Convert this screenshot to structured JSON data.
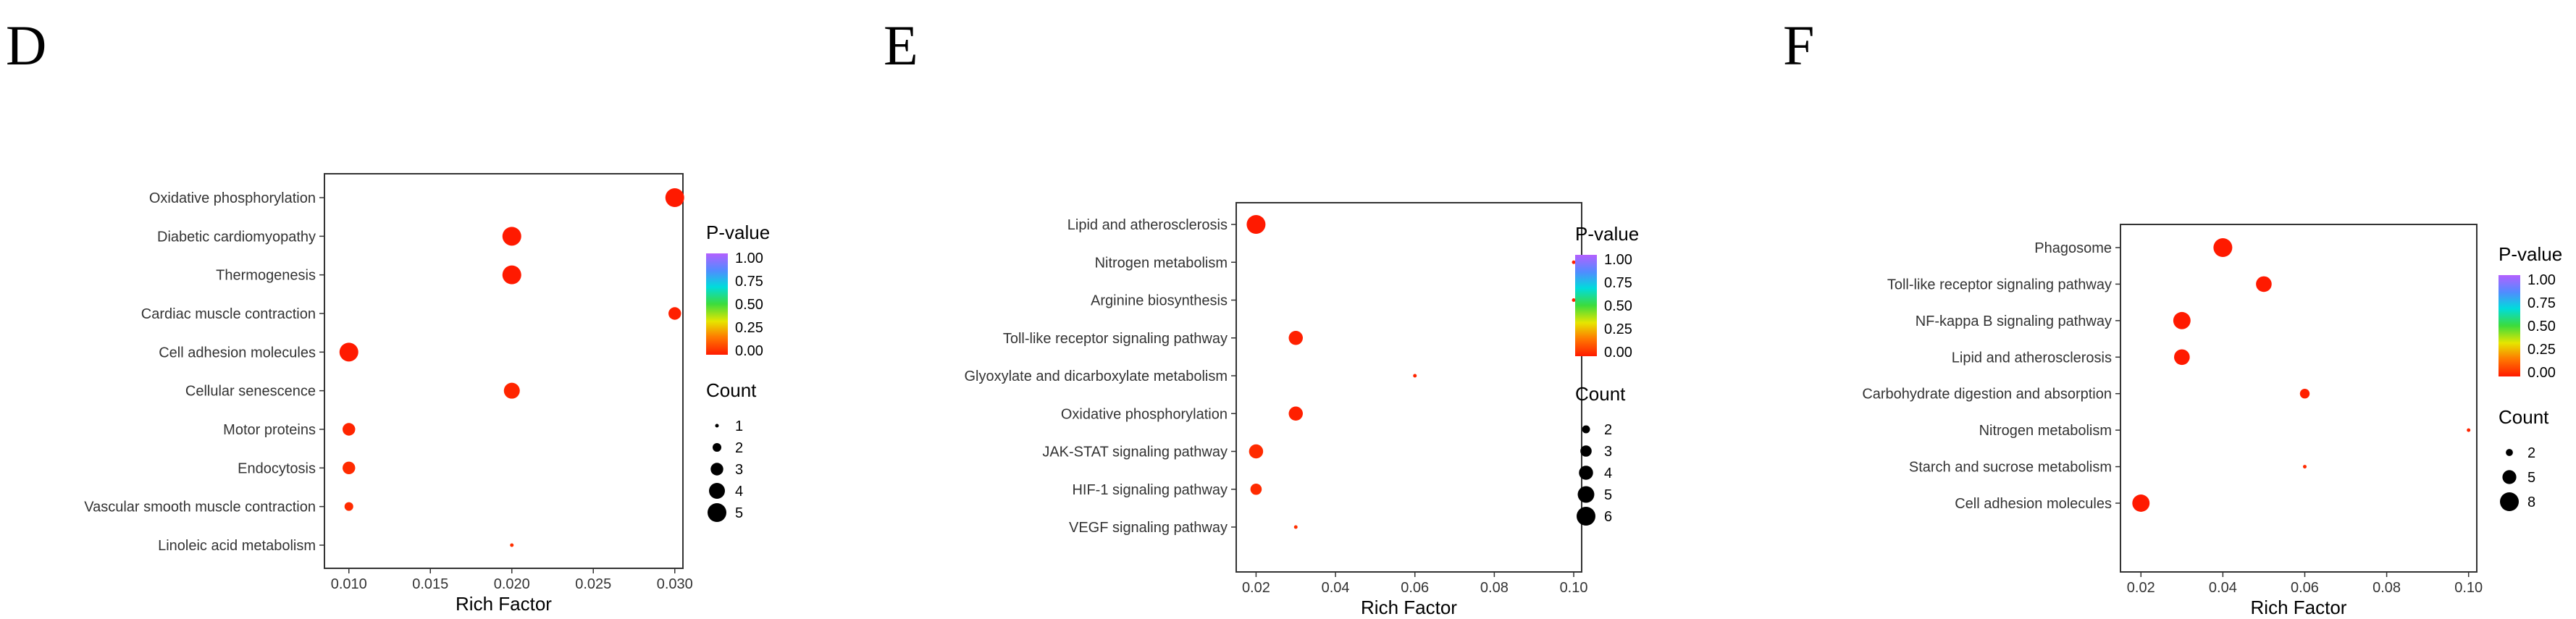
{
  "panel_labels": [
    "D",
    "E",
    "F"
  ],
  "colors": {
    "low_p": "#ff1a00",
    "high_p": "#b460ff",
    "frame": "#333333",
    "dot": "#ee3322"
  },
  "chart_data": [
    {
      "type": "scatter",
      "xlabel": "Rich Factor",
      "xlim": [
        0.0085,
        0.0305
      ],
      "xticks": [
        "0.010",
        "0.015",
        "0.020",
        "0.025",
        "0.030"
      ],
      "xtick_values": [
        0.01,
        0.015,
        0.02,
        0.025,
        0.03
      ],
      "color_legend_title": "P-value",
      "color_legend_ticks": [
        "1.00",
        "0.75",
        "0.50",
        "0.25",
        "0.00"
      ],
      "size_legend_title": "Count",
      "size_legend_values": [
        1,
        2,
        3,
        4,
        5
      ],
      "size_range": [
        1,
        5
      ],
      "categories": [
        "Oxidative phosphorylation",
        "Diabetic cardiomyopathy",
        "Thermogenesis",
        "Cardiac muscle contraction",
        "Cell adhesion molecules",
        "Cellular senescence",
        "Motor proteins",
        "Endocytosis",
        "Vascular smooth muscle contraction",
        "Linoleic acid metabolism"
      ],
      "points": [
        {
          "category": "Oxidative phosphorylation",
          "x": 0.03,
          "count": 5,
          "p": 0.0
        },
        {
          "category": "Diabetic cardiomyopathy",
          "x": 0.02,
          "count": 5,
          "p": 0.0
        },
        {
          "category": "Thermogenesis",
          "x": 0.02,
          "count": 5,
          "p": 0.0
        },
        {
          "category": "Cardiac muscle contraction",
          "x": 0.03,
          "count": 3,
          "p": 0.01
        },
        {
          "category": "Cell adhesion molecules",
          "x": 0.01,
          "count": 5,
          "p": 0.0
        },
        {
          "category": "Cellular senescence",
          "x": 0.02,
          "count": 4,
          "p": 0.02
        },
        {
          "category": "Motor proteins",
          "x": 0.01,
          "count": 3,
          "p": 0.02
        },
        {
          "category": "Endocytosis",
          "x": 0.01,
          "count": 3,
          "p": 0.03
        },
        {
          "category": "Vascular smooth muscle contraction",
          "x": 0.01,
          "count": 2,
          "p": 0.03
        },
        {
          "category": "Linoleic acid metabolism",
          "x": 0.02,
          "count": 1,
          "p": 0.04
        }
      ]
    },
    {
      "type": "scatter",
      "xlabel": "Rich Factor",
      "xlim": [
        0.015,
        0.102
      ],
      "xticks": [
        "0.02",
        "0.04",
        "0.06",
        "0.08",
        "0.10"
      ],
      "xtick_values": [
        0.02,
        0.04,
        0.06,
        0.08,
        0.1
      ],
      "color_legend_title": "P-value",
      "color_legend_ticks": [
        "1.00",
        "0.75",
        "0.50",
        "0.25",
        "0.00"
      ],
      "size_legend_title": "Count",
      "size_legend_values": [
        2,
        3,
        4,
        5,
        6
      ],
      "size_range": [
        1,
        6
      ],
      "categories": [
        "Lipid and atherosclerosis",
        "Nitrogen metabolism",
        "Arginine biosynthesis",
        "Toll-like receptor signaling pathway",
        "Glyoxylate and dicarboxylate metabolism",
        "Oxidative phosphorylation",
        "JAK-STAT signaling pathway",
        "HIF-1 signaling pathway",
        "VEGF signaling pathway"
      ],
      "points": [
        {
          "category": "Lipid and atherosclerosis",
          "x": 0.02,
          "count": 6,
          "p": 0.0
        },
        {
          "category": "Nitrogen metabolism",
          "x": 0.1,
          "count": 1,
          "p": 0.01
        },
        {
          "category": "Arginine biosynthesis",
          "x": 0.1,
          "count": 1,
          "p": 0.01
        },
        {
          "category": "Toll-like receptor signaling pathway",
          "x": 0.03,
          "count": 4,
          "p": 0.01
        },
        {
          "category": "Glyoxylate and dicarboxylate metabolism",
          "x": 0.06,
          "count": 1,
          "p": 0.02
        },
        {
          "category": "Oxidative phosphorylation",
          "x": 0.03,
          "count": 4,
          "p": 0.01
        },
        {
          "category": "JAK-STAT signaling pathway",
          "x": 0.02,
          "count": 4,
          "p": 0.03
        },
        {
          "category": "HIF-1 signaling pathway",
          "x": 0.02,
          "count": 3,
          "p": 0.03
        },
        {
          "category": "VEGF signaling pathway",
          "x": 0.03,
          "count": 1,
          "p": 0.04
        }
      ]
    },
    {
      "type": "scatter",
      "xlabel": "Rich Factor",
      "xlim": [
        0.015,
        0.102
      ],
      "xticks": [
        "0.02",
        "0.04",
        "0.06",
        "0.08",
        "0.10"
      ],
      "xtick_values": [
        0.02,
        0.04,
        0.06,
        0.08,
        0.1
      ],
      "color_legend_title": "P-value",
      "color_legend_ticks": [
        "1.00",
        "0.75",
        "0.50",
        "0.25",
        "0.00"
      ],
      "size_legend_title": "Count",
      "size_legend_values": [
        2,
        5,
        8
      ],
      "size_range": [
        1,
        8
      ],
      "categories": [
        "Phagosome",
        "Toll-like receptor signaling pathway",
        "NF-kappa B signaling pathway",
        "Lipid and atherosclerosis",
        "Carbohydrate digestion and absorption",
        "Nitrogen metabolism",
        "Starch and sucrose metabolism",
        "Cell adhesion molecules"
      ],
      "points": [
        {
          "category": "Phagosome",
          "x": 0.04,
          "count": 8,
          "p": 0.0
        },
        {
          "category": "Toll-like receptor signaling pathway",
          "x": 0.05,
          "count": 6,
          "p": 0.0
        },
        {
          "category": "NF-kappa B signaling pathway",
          "x": 0.03,
          "count": 7,
          "p": 0.0
        },
        {
          "category": "Lipid and atherosclerosis",
          "x": 0.03,
          "count": 6,
          "p": 0.0
        },
        {
          "category": "Carbohydrate digestion and absorption",
          "x": 0.06,
          "count": 3,
          "p": 0.01
        },
        {
          "category": "Nitrogen metabolism",
          "x": 0.1,
          "count": 1,
          "p": 0.02
        },
        {
          "category": "Starch and sucrose metabolism",
          "x": 0.06,
          "count": 1,
          "p": 0.03
        },
        {
          "category": "Cell adhesion molecules",
          "x": 0.02,
          "count": 7,
          "p": 0.0
        }
      ]
    }
  ]
}
